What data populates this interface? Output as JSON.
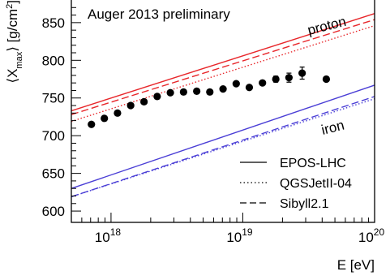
{
  "chart_data": {
    "type": "scatter",
    "annotation": "Auger 2013 preliminary",
    "xlabel": "E [eV]",
    "ylabel": "⟨X",
    "ylabel_sub": "max",
    "ylabel_unit": "⟩ [g/cm",
    "ylabel_sup": "2",
    "ylabel_close": "]",
    "x_scale": "log",
    "xlim": [
      5e+17,
      1e+20
    ],
    "ylim": [
      585,
      880
    ],
    "x_ticks": [
      {
        "value": 1e+18,
        "base": "10",
        "exp": "18"
      },
      {
        "value": 1e+19,
        "base": "10",
        "exp": "19"
      },
      {
        "value": 1e+20,
        "base": "10",
        "exp": "20"
      }
    ],
    "y_ticks": [
      600,
      650,
      700,
      750,
      800,
      850
    ],
    "grid": false,
    "legend_position": "bottom-right",
    "group_labels": [
      {
        "text": "proton",
        "color": "#000000"
      },
      {
        "text": "iron",
        "color": "#000000"
      }
    ],
    "legend": [
      {
        "label": "EPOS-LHC",
        "style": "solid"
      },
      {
        "label": "QGSJetII-04",
        "style": "dotted"
      },
      {
        "label": "Sibyll2.1",
        "style": "dashed"
      }
    ],
    "colors": {
      "proton": "#e8272b",
      "iron": "#4b3fd6",
      "points": "#000000"
    },
    "model_lines": [
      {
        "group": "proton",
        "model": "EPOS-LHC",
        "style": "solid",
        "x": [
          5e+17,
          1e+20
        ],
        "y": [
          733,
          862
        ]
      },
      {
        "group": "proton",
        "model": "Sibyll2.1",
        "style": "dashed",
        "x": [
          5e+17,
          1e+20
        ],
        "y": [
          728,
          854
        ]
      },
      {
        "group": "proton",
        "model": "QGSJetII-04",
        "style": "dotted",
        "x": [
          5e+17,
          1e+20
        ],
        "y": [
          719,
          846
        ]
      },
      {
        "group": "iron",
        "model": "EPOS-LHC",
        "style": "solid",
        "x": [
          5e+17,
          1e+20
        ],
        "y": [
          630,
          767
        ]
      },
      {
        "group": "iron",
        "model": "Sibyll2.1",
        "style": "dashed",
        "x": [
          5e+17,
          1e+20
        ],
        "y": [
          619,
          752
        ]
      },
      {
        "group": "iron",
        "model": "QGSJetII-04",
        "style": "dotted",
        "x": [
          5e+17,
          1e+20
        ],
        "y": [
          619,
          749
        ]
      }
    ],
    "points": {
      "x": [
        7.1e+17,
        8.9e+17,
        1.12e+18,
        1.41e+18,
        1.78e+18,
        2.24e+18,
        2.82e+18,
        3.55e+18,
        4.47e+18,
        5.62e+18,
        7.08e+18,
        8.91e+18,
        1.12e+19,
        1.41e+19,
        1.78e+19,
        2.24e+19,
        2.82e+19,
        4.3e+19
      ],
      "y": [
        715,
        723,
        730,
        740,
        745,
        752,
        757,
        758,
        759,
        758,
        762,
        769,
        764,
        770,
        775,
        777,
        783,
        775
      ],
      "yerr": [
        2,
        2,
        2,
        2,
        2,
        2,
        2,
        2,
        2,
        2,
        2,
        2,
        2,
        3,
        4,
        6,
        8,
        3
      ]
    }
  }
}
